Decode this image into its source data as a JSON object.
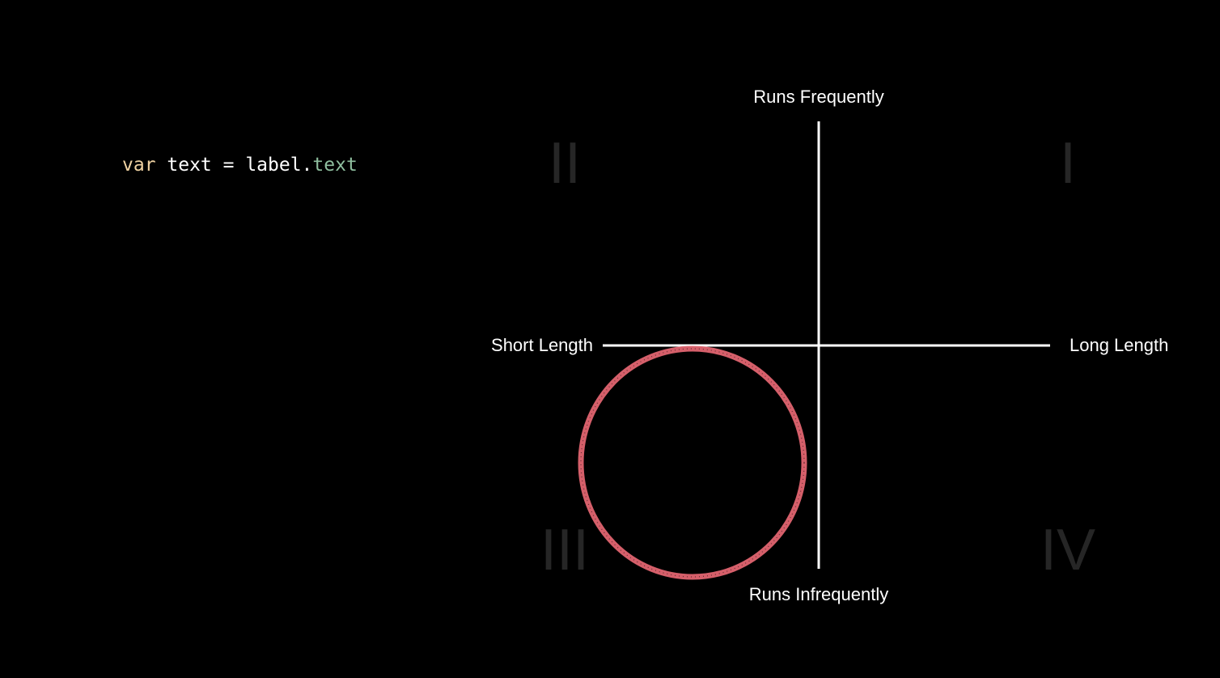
{
  "code": {
    "keyword": "var",
    "lhs": " text = label.",
    "property": "text"
  },
  "axes": {
    "top": "Runs Frequently",
    "bottom": "Runs Infrequently",
    "left": "Short Length",
    "right": "Long Length"
  },
  "quadrants": {
    "I": "I",
    "II": "II",
    "III": "III",
    "IV": "IV"
  },
  "highlight": {
    "quadrant": "III",
    "color": "#e06470"
  },
  "colors": {
    "background": "#000000",
    "axis": "#ffffff",
    "quadrant_numeral": "#262626",
    "keyword": "#f1d3a3",
    "property": "#8fbf9f"
  }
}
